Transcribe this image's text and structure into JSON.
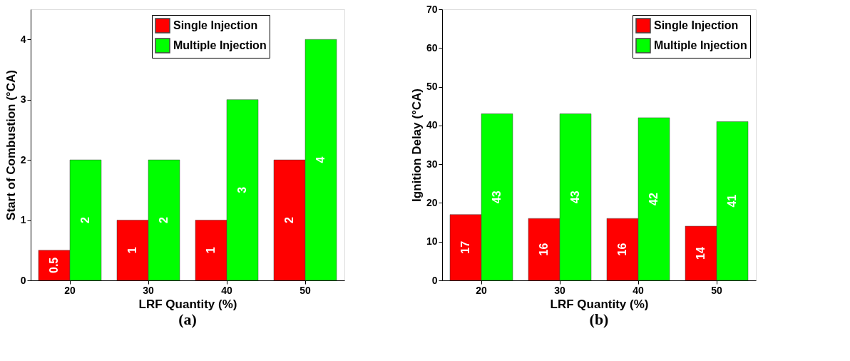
{
  "chart_data": [
    {
      "type": "bar",
      "title": "(a)",
      "xlabel": "LRF Quantity (%)",
      "ylabel": "Start of Combustion (°CA)",
      "categories": [
        "20",
        "30",
        "40",
        "50"
      ],
      "series": [
        {
          "name": "Single Injection",
          "color": "#ff0000",
          "values": [
            0.5,
            1,
            1,
            2
          ]
        },
        {
          "name": "Multiple Injection",
          "color": "#00ff00",
          "values": [
            2,
            2,
            3,
            4
          ]
        }
      ],
      "ylim": [
        0,
        4.5
      ],
      "yticks": [
        0,
        1,
        2,
        3,
        4
      ],
      "data_labels": true,
      "legend": "top right",
      "grid": false
    },
    {
      "type": "bar",
      "title": "(b)",
      "xlabel": "LRF Quantity (%)",
      "ylabel": "Ignition Delay (°CA)",
      "categories": [
        "20",
        "30",
        "40",
        "50"
      ],
      "series": [
        {
          "name": "Single Injection",
          "color": "#ff0000",
          "values": [
            17,
            16,
            16,
            14
          ]
        },
        {
          "name": "Multiple Injection",
          "color": "#00ff00",
          "values": [
            43,
            43,
            42,
            41
          ]
        }
      ],
      "ylim": [
        0,
        70
      ],
      "yticks": [
        0,
        10,
        20,
        30,
        40,
        50,
        60,
        70
      ],
      "data_labels": true,
      "legend": "top right",
      "grid": false
    }
  ]
}
